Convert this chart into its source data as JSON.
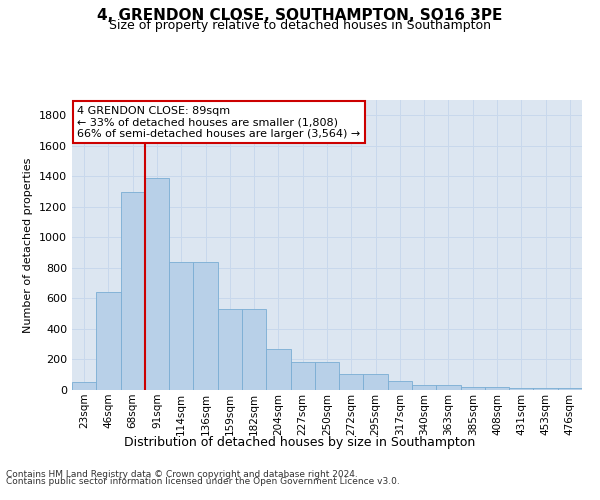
{
  "title1": "4, GRENDON CLOSE, SOUTHAMPTON, SO16 3PE",
  "title2": "Size of property relative to detached houses in Southampton",
  "xlabel": "Distribution of detached houses by size in Southampton",
  "ylabel": "Number of detached properties",
  "categories": [
    "23sqm",
    "46sqm",
    "68sqm",
    "91sqm",
    "114sqm",
    "136sqm",
    "159sqm",
    "182sqm",
    "204sqm",
    "227sqm",
    "250sqm",
    "272sqm",
    "295sqm",
    "317sqm",
    "340sqm",
    "363sqm",
    "385sqm",
    "408sqm",
    "431sqm",
    "453sqm",
    "476sqm"
  ],
  "values": [
    50,
    640,
    1300,
    1390,
    840,
    840,
    530,
    530,
    270,
    185,
    185,
    105,
    105,
    60,
    30,
    30,
    20,
    20,
    10,
    10,
    10
  ],
  "bar_color": "#b8d0e8",
  "bar_edge_color": "#7aadd4",
  "vline_color": "#cc0000",
  "vline_x_idx": 3,
  "annotation_text": "4 GRENDON CLOSE: 89sqm\n← 33% of detached houses are smaller (1,808)\n66% of semi-detached houses are larger (3,564) →",
  "annotation_box_facecolor": "#ffffff",
  "annotation_box_edgecolor": "#cc0000",
  "ylim": [
    0,
    1900
  ],
  "yticks": [
    0,
    200,
    400,
    600,
    800,
    1000,
    1200,
    1400,
    1600,
    1800
  ],
  "grid_color": "#c8d8ec",
  "background_color": "#dce6f1",
  "footer1": "Contains HM Land Registry data © Crown copyright and database right 2024.",
  "footer2": "Contains public sector information licensed under the Open Government Licence v3.0."
}
